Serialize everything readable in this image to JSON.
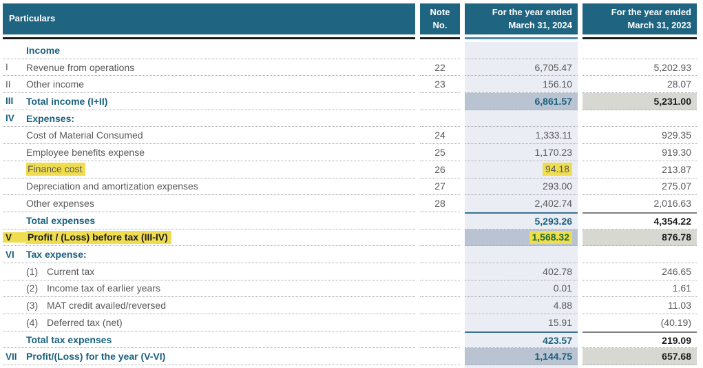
{
  "header": {
    "particulars": "Particulars",
    "note_line1": "Note",
    "note_line2": "No.",
    "y2024_line1": "For the year ended",
    "y2024_line2": "March 31, 2024",
    "y2023_line1": "For the year ended",
    "y2023_line2": "March 31, 2023"
  },
  "rows": [
    {
      "num": "",
      "sub": "",
      "label": "Income",
      "note": "",
      "y2024": "",
      "y2023": "",
      "style": "section"
    },
    {
      "num": "I",
      "sub": "",
      "label": "Revenue from operations",
      "note": "22",
      "y2024": "6,705.47",
      "y2023": "5,202.93",
      "style": "normal"
    },
    {
      "num": "II",
      "sub": "",
      "label": "Other income",
      "note": "23",
      "y2024": "156.10",
      "y2023": "28.07",
      "style": "normal"
    },
    {
      "num": "III",
      "sub": "",
      "label": "Total income (I+II)",
      "note": "",
      "y2024": "6,861.57",
      "y2023": "5,231.00",
      "style": "total-band"
    },
    {
      "num": "IV",
      "sub": "",
      "label": "Expenses:",
      "note": "",
      "y2024": "",
      "y2023": "",
      "style": "section"
    },
    {
      "num": "",
      "sub": "",
      "label": "Cost of Material Consumed",
      "note": "24",
      "y2024": "1,333.11",
      "y2023": "929.35",
      "style": "normal"
    },
    {
      "num": "",
      "sub": "",
      "label": "Employee benefits expense",
      "note": "25",
      "y2024": "1,170.23",
      "y2023": "919.30",
      "style": "normal"
    },
    {
      "num": "",
      "sub": "",
      "label": "Finance cost",
      "note": "26",
      "y2024": "94.18",
      "y2023": "213.87",
      "style": "finance"
    },
    {
      "num": "",
      "sub": "",
      "label": "Depreciation and amortization expenses",
      "note": "27",
      "y2024": "293.00",
      "y2023": "275.07",
      "style": "normal"
    },
    {
      "num": "",
      "sub": "",
      "label": "Other expenses",
      "note": "28",
      "y2024": "2,402.74",
      "y2023": "2,016.63",
      "style": "normal"
    },
    {
      "num": "",
      "sub": "",
      "label": "Total expenses",
      "note": "",
      "y2024": "5,293.26",
      "y2023": "4,354.22",
      "style": "total-line"
    },
    {
      "num": "V",
      "sub": "",
      "label": "Profit / (Loss) before tax (III-IV)",
      "note": "",
      "y2024": "1,568.32",
      "y2023": "876.78",
      "style": "profit"
    },
    {
      "num": "VI",
      "sub": "",
      "label": "Tax expense:",
      "note": "",
      "y2024": "",
      "y2023": "",
      "style": "section"
    },
    {
      "num": "",
      "sub": "(1)",
      "label": "Current tax",
      "note": "",
      "y2024": "402.78",
      "y2023": "246.65",
      "style": "normal"
    },
    {
      "num": "",
      "sub": "(2)",
      "label": "Income tax of earlier years",
      "note": "",
      "y2024": "0.01",
      "y2023": "1.61",
      "style": "normal"
    },
    {
      "num": "",
      "sub": "(3)",
      "label": "MAT credit availed/reversed",
      "note": "",
      "y2024": "4.88",
      "y2023": "11.03",
      "style": "normal"
    },
    {
      "num": "",
      "sub": "(4)",
      "label": "Deferred tax (net)",
      "note": "",
      "y2024": "15.91",
      "y2023": "(40.19)",
      "style": "normal"
    },
    {
      "num": "",
      "sub": "",
      "label": "Total tax expenses",
      "note": "",
      "y2024": "423.57",
      "y2023": "219.09",
      "style": "total-line"
    },
    {
      "num": "VII",
      "sub": "",
      "label": "Profit/(Loss) for the year (V-VI)",
      "note": "",
      "y2024": "1,144.75",
      "y2023": "657.68",
      "style": "total-band"
    }
  ],
  "colors": {
    "header_bg": "#1f6480",
    "accent_teal_text": "#19607d",
    "column_2024_band": "#eaedf3",
    "total_band_2024": "#b9c3d1",
    "total_band_2023": "#d8d8d3",
    "highlight_yellow": "#f0dd4f",
    "highlight_green_text": "#1e6c33",
    "header_underline_2024": "#4a89ab",
    "header_underline_dark": "#1a1a1a",
    "total_topline_2024": "#3e7193",
    "total_topline_2023": "#7f7f7f"
  }
}
